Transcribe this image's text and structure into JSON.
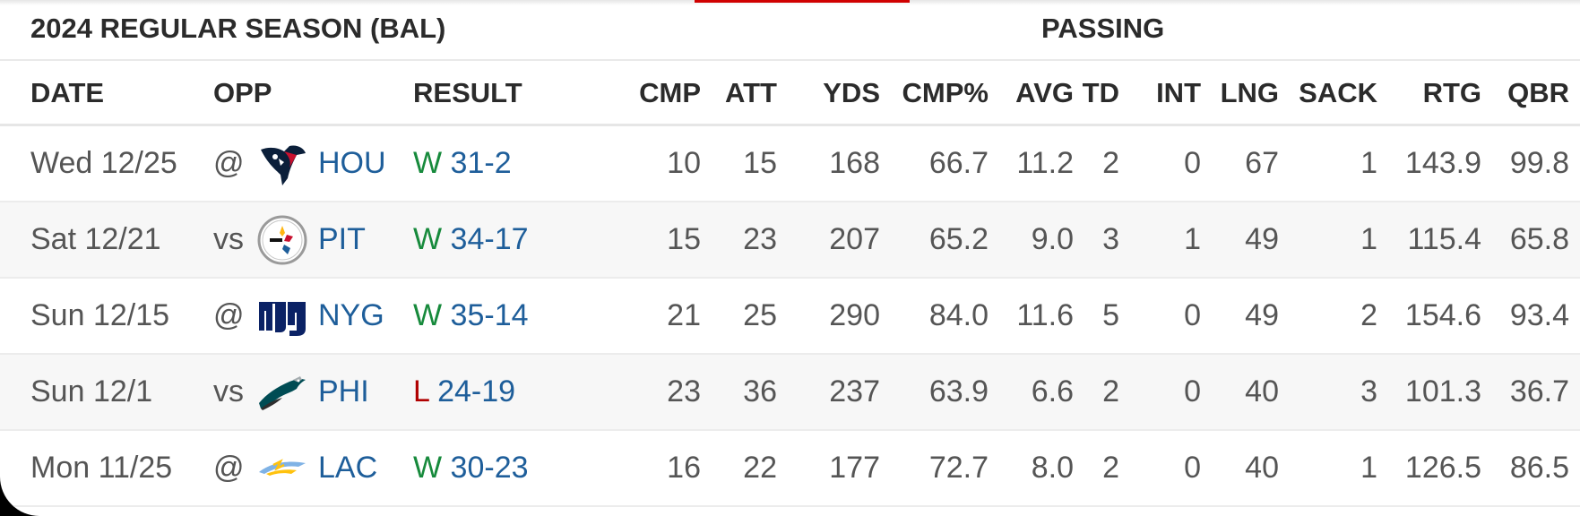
{
  "table": {
    "group_title": "2024 REGULAR SEASON (BAL)",
    "group_passing": "PASSING",
    "columns": [
      "DATE",
      "OPP",
      "RESULT",
      "CMP",
      "ATT",
      "YDS",
      "CMP%",
      "AVG",
      "TD",
      "INT",
      "LNG",
      "SACK",
      "RTG",
      "QBR"
    ],
    "rows": [
      {
        "date": "Wed 12/25",
        "opp_prefix": "@",
        "opp_team": "HOU",
        "logo_icon": "texans-logo-icon",
        "result_wl": "W",
        "score": "31-2",
        "cmp": "10",
        "att": "15",
        "yds": "168",
        "cmp_pct": "66.7",
        "avg": "11.2",
        "td": "2",
        "int": "0",
        "lng": "67",
        "sack": "1",
        "rtg": "143.9",
        "qbr": "99.8"
      },
      {
        "date": "Sat 12/21",
        "opp_prefix": "vs",
        "opp_team": "PIT",
        "logo_icon": "steelers-logo-icon",
        "result_wl": "W",
        "score": "34-17",
        "cmp": "15",
        "att": "23",
        "yds": "207",
        "cmp_pct": "65.2",
        "avg": "9.0",
        "td": "3",
        "int": "1",
        "lng": "49",
        "sack": "1",
        "rtg": "115.4",
        "qbr": "65.8"
      },
      {
        "date": "Sun 12/15",
        "opp_prefix": "@",
        "opp_team": "NYG",
        "logo_icon": "giants-logo-icon",
        "result_wl": "W",
        "score": "35-14",
        "cmp": "21",
        "att": "25",
        "yds": "290",
        "cmp_pct": "84.0",
        "avg": "11.6",
        "td": "5",
        "int": "0",
        "lng": "49",
        "sack": "2",
        "rtg": "154.6",
        "qbr": "93.4"
      },
      {
        "date": "Sun 12/1",
        "opp_prefix": "vs",
        "opp_team": "PHI",
        "logo_icon": "eagles-logo-icon",
        "result_wl": "L",
        "score": "24-19",
        "cmp": "23",
        "att": "36",
        "yds": "237",
        "cmp_pct": "63.9",
        "avg": "6.6",
        "td": "2",
        "int": "0",
        "lng": "40",
        "sack": "3",
        "rtg": "101.3",
        "qbr": "36.7"
      },
      {
        "date": "Mon 11/25",
        "opp_prefix": "@",
        "opp_team": "LAC",
        "logo_icon": "chargers-logo-icon",
        "result_wl": "W",
        "score": "30-23",
        "cmp": "16",
        "att": "22",
        "yds": "177",
        "cmp_pct": "72.7",
        "avg": "8.0",
        "td": "2",
        "int": "0",
        "lng": "40",
        "sack": "1",
        "rtg": "126.5",
        "qbr": "86.5"
      }
    ]
  },
  "colors": {
    "win": "#178a3c",
    "loss": "#b00000",
    "link": "#1e5e9a",
    "accent": "#d00000"
  }
}
